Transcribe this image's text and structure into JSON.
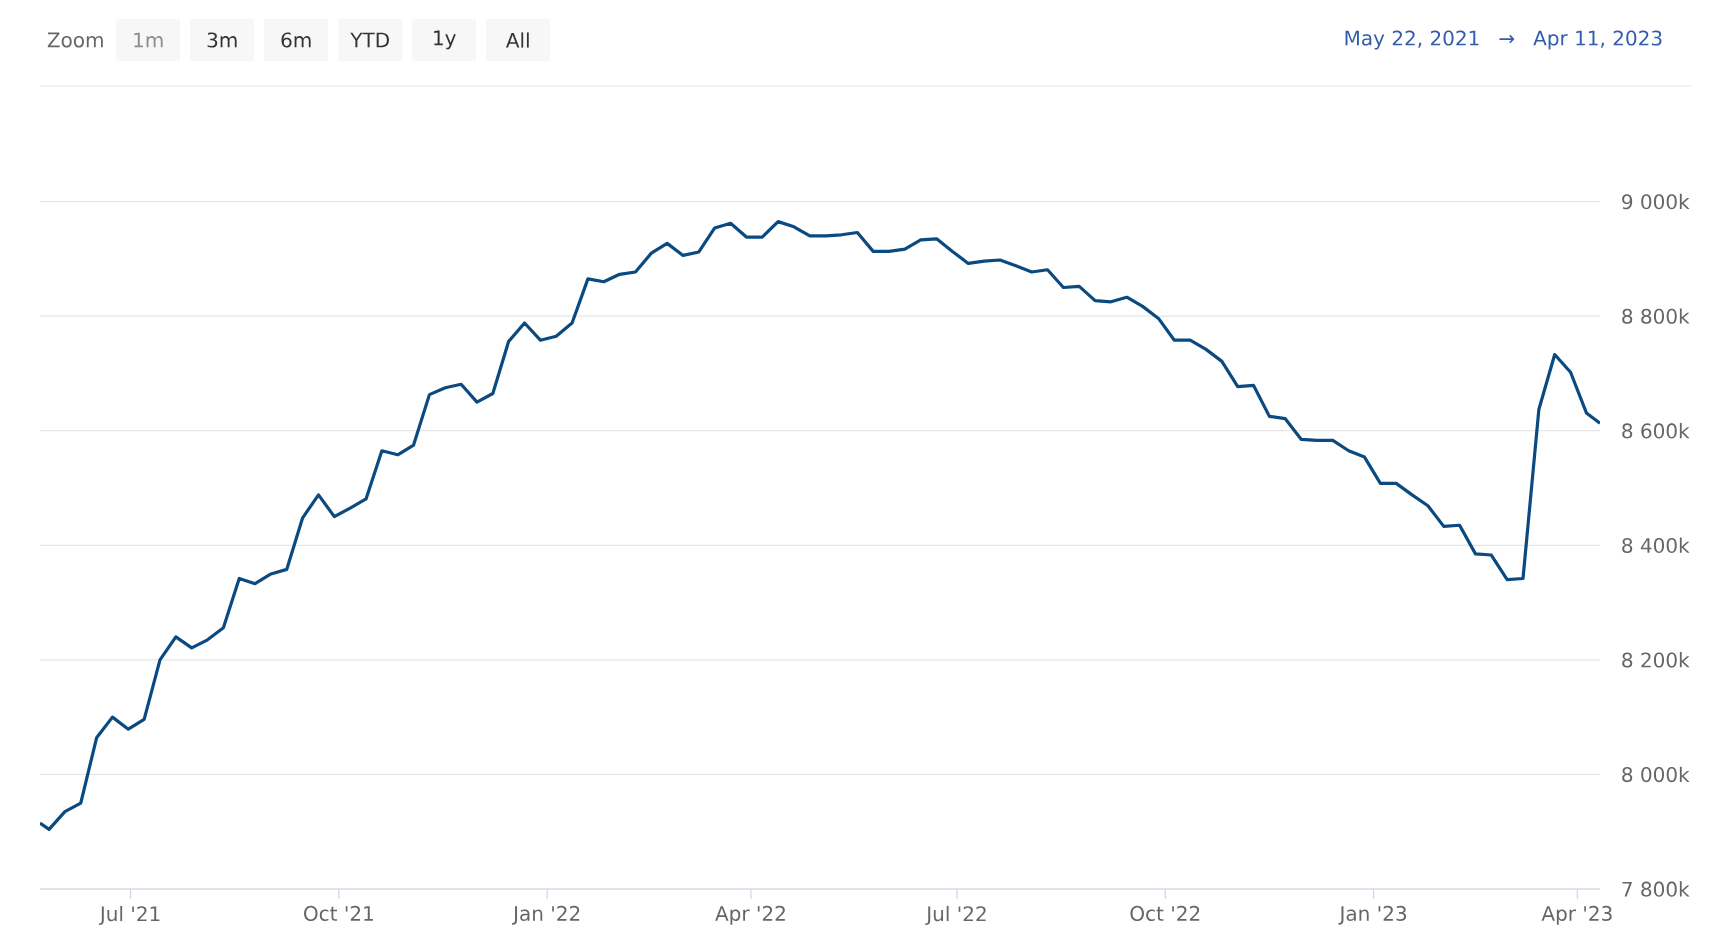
{
  "chart_data": {
    "type": "line",
    "annotations": [
      "Zoom",
      "1m",
      "3m",
      "6m",
      "YTD",
      "1y",
      "All",
      "May 22, 2021",
      "→",
      "Apr 11, 2023"
    ],
    "x": [
      "2021-05-22",
      "2021-05-26",
      "2021-06-02",
      "2021-06-09",
      "2021-06-16",
      "2021-06-23",
      "2021-06-30",
      "2021-07-07",
      "2021-07-14",
      "2021-07-21",
      "2021-07-28",
      "2021-08-04",
      "2021-08-11",
      "2021-08-18",
      "2021-08-25",
      "2021-09-01",
      "2021-09-08",
      "2021-09-15",
      "2021-09-22",
      "2021-09-29",
      "2021-10-06",
      "2021-10-13",
      "2021-10-20",
      "2021-10-27",
      "2021-11-03",
      "2021-11-10",
      "2021-11-17",
      "2021-11-24",
      "2021-12-01",
      "2021-12-08",
      "2021-12-15",
      "2021-12-22",
      "2021-12-29",
      "2022-01-05",
      "2022-01-12",
      "2022-01-19",
      "2022-01-26",
      "2022-02-02",
      "2022-02-09",
      "2022-02-16",
      "2022-02-23",
      "2022-03-02",
      "2022-03-09",
      "2022-03-16",
      "2022-03-23",
      "2022-03-30",
      "2022-04-06",
      "2022-04-13",
      "2022-04-20",
      "2022-04-27",
      "2022-05-04",
      "2022-05-11",
      "2022-05-18",
      "2022-05-25",
      "2022-06-01",
      "2022-06-08",
      "2022-06-15",
      "2022-06-22",
      "2022-06-29",
      "2022-07-06",
      "2022-07-13",
      "2022-07-20",
      "2022-07-27",
      "2022-08-03",
      "2022-08-10",
      "2022-08-17",
      "2022-08-24",
      "2022-08-31",
      "2022-09-07",
      "2022-09-14",
      "2022-09-21",
      "2022-09-28",
      "2022-10-05",
      "2022-10-12",
      "2022-10-19",
      "2022-10-26",
      "2022-11-02",
      "2022-11-09",
      "2022-11-16",
      "2022-11-23",
      "2022-11-30",
      "2022-12-07",
      "2022-12-14",
      "2022-12-21",
      "2022-12-28",
      "2023-01-04",
      "2023-01-11",
      "2023-01-18",
      "2023-01-25",
      "2023-02-01",
      "2023-02-08",
      "2023-02-15",
      "2023-02-22",
      "2023-03-01",
      "2023-03-08",
      "2023-03-15",
      "2023-03-22",
      "2023-03-29",
      "2023-04-05",
      "2023-04-11"
    ],
    "series": [
      {
        "color": "#0b4a80",
        "values": [
          7915,
          7904,
          7935,
          7950,
          8064,
          8100,
          8079,
          8096,
          8200,
          8240,
          8221,
          8235,
          8256,
          8342,
          8333,
          8350,
          8358,
          8448,
          8488,
          8450,
          8465,
          8481,
          8565,
          8558,
          8575,
          8663,
          8675,
          8681,
          8650,
          8665,
          8756,
          8788,
          8758,
          8765,
          8788,
          8865,
          8860,
          8873,
          8877,
          8910,
          8927,
          8906,
          8912,
          8954,
          8962,
          8938,
          8938,
          8965,
          8956,
          8940,
          8940,
          8942,
          8946,
          8913,
          8913,
          8917,
          8933,
          8935,
          8913,
          8892,
          8896,
          8898,
          8888,
          8877,
          8881,
          8850,
          8852,
          8827,
          8825,
          8833,
          8817,
          8796,
          8758,
          8758,
          8742,
          8721,
          8677,
          8679,
          8625,
          8621,
          8585,
          8583,
          8583,
          8565,
          8554,
          8508,
          8508,
          8488,
          8469,
          8433,
          8435,
          8385,
          8383,
          8340,
          8342,
          8637,
          8733,
          8702,
          8631,
          8613
        ]
      }
    ],
    "xlim": [
      "2021-05-22",
      "2023-04-11"
    ],
    "xticks": [
      {
        "value": "2021-07-01",
        "label": "Jul '21"
      },
      {
        "value": "2021-10-01",
        "label": "Oct '21"
      },
      {
        "value": "2022-01-01",
        "label": "Jan '22"
      },
      {
        "value": "2022-04-01",
        "label": "Apr '22"
      },
      {
        "value": "2022-07-01",
        "label": "Jul '22"
      },
      {
        "value": "2022-10-01",
        "label": "Oct '22"
      },
      {
        "value": "2023-01-01",
        "label": "Jan '23"
      },
      {
        "value": "2023-04-01",
        "label": "Apr '23"
      }
    ],
    "ylim": [
      7800,
      9200
    ],
    "yticks": [
      {
        "value": 7800,
        "label": "7 800k"
      },
      {
        "value": 8000,
        "label": "8 000k"
      },
      {
        "value": 8200,
        "label": "8 200k"
      },
      {
        "value": 8400,
        "label": "8 400k"
      },
      {
        "value": 8600,
        "label": "8 600k"
      },
      {
        "value": 8800,
        "label": "8 800k"
      },
      {
        "value": 9000,
        "label": "9 000k"
      }
    ],
    "grid": "y",
    "marker": "none",
    "line_style": "solid"
  }
}
